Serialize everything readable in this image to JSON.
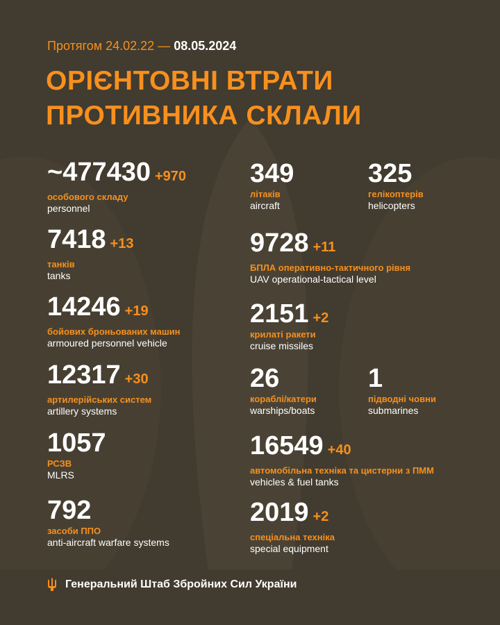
{
  "header": {
    "period_prefix": "Протягом 24.02.22 —",
    "period_end": "08.05.2024",
    "title_line1": "ОРІЄНТОВНІ ВТРАТИ",
    "title_line2": "ПРОТИВНИКА СКЛАЛИ"
  },
  "left": [
    {
      "value": "~477430",
      "delta": "+970",
      "ua": "особового складу",
      "en": "personnel"
    },
    {
      "value": "7418",
      "delta": "+13",
      "ua": "танків",
      "en": "tanks"
    },
    {
      "value": "14246",
      "delta": "+19",
      "ua": "бойових броньованих машин",
      "en": "armoured personnel vehicle"
    },
    {
      "value": "12317",
      "delta": "+30",
      "ua": "артилерійських систем",
      "en": "artillery systems"
    },
    {
      "value": "1057",
      "delta": "",
      "ua": "РСЗВ",
      "en": "MLRS"
    },
    {
      "value": "792",
      "delta": "",
      "ua": "засоби ППО",
      "en": "anti-aircraft warfare systems"
    }
  ],
  "right": [
    {
      "value": "349",
      "delta": "",
      "ua": "літаків",
      "en": "aircraft"
    },
    {
      "value": "325",
      "delta": "",
      "ua": "гелікоптерів",
      "en": "helicopters"
    },
    {
      "value": "9728",
      "delta": "+11",
      "ua": "БПЛА оперативно-тактичного рівня",
      "en": "UAV operational-tactical level"
    },
    {
      "value": "2151",
      "delta": "+2",
      "ua": "крилаті ракети",
      "en": "cruise missiles"
    },
    {
      "value": "26",
      "delta": "",
      "ua": "кораблі/катери",
      "en": "warships/boats"
    },
    {
      "value": "1",
      "delta": "",
      "ua": "підводні човни",
      "en": "submarines"
    },
    {
      "value": "16549",
      "delta": "+40",
      "ua": "автомобільна техніка та цистерни з ПММ",
      "en": "vehicles & fuel tanks"
    },
    {
      "value": "2019",
      "delta": "+2",
      "ua": "спеціальна техніка",
      "en": "special equipment"
    }
  ],
  "footer": {
    "icon": "trident-icon",
    "text": "Генеральний Штаб Збройних Сил України"
  },
  "colors": {
    "background": "#423b2f",
    "accent": "#f7901e"
  }
}
